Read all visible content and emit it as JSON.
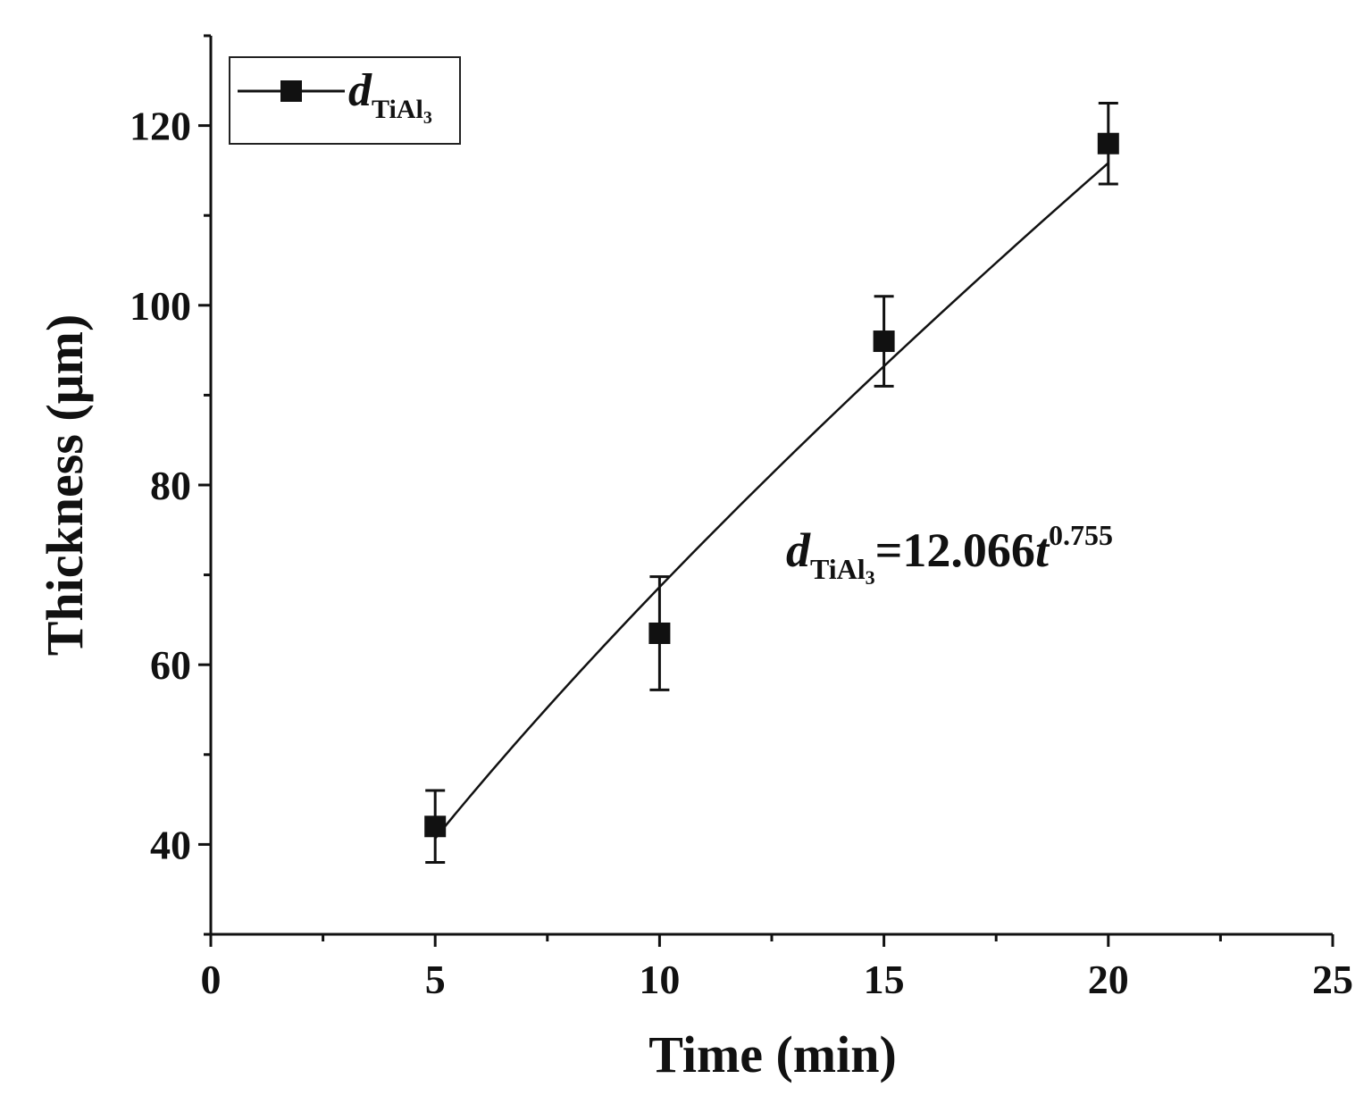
{
  "chart_data": {
    "type": "scatter",
    "title": "",
    "xlabel": "Time (min)",
    "ylabel": "Thickness (μm)",
    "xlim": [
      0,
      25
    ],
    "ylim": [
      30,
      130
    ],
    "x_ticks": [
      0,
      5,
      10,
      15,
      20,
      25
    ],
    "y_ticks": [
      40,
      60,
      80,
      100,
      120
    ],
    "grid": false,
    "legend_position": "top-left",
    "series": [
      {
        "name": "d_TiAl3",
        "name_main": "d",
        "name_sub": "TiAl",
        "name_subsub": "3",
        "marker": "square",
        "color": "#111111",
        "x": [
          5,
          10,
          15,
          20
        ],
        "y": [
          42,
          63.5,
          96,
          118
        ],
        "error": [
          4,
          6.3,
          5,
          4.5
        ]
      }
    ],
    "fit": {
      "equation": "d_TiAl3=12.066t^0.755",
      "coefficient": 12.066,
      "exponent": 0.755,
      "x_range": [
        5,
        20
      ],
      "label_main": "d",
      "label_sub": "TiAl",
      "label_subsub": "3",
      "label_eq": "=12.066",
      "label_var": "t",
      "label_exp": "0.755"
    }
  }
}
